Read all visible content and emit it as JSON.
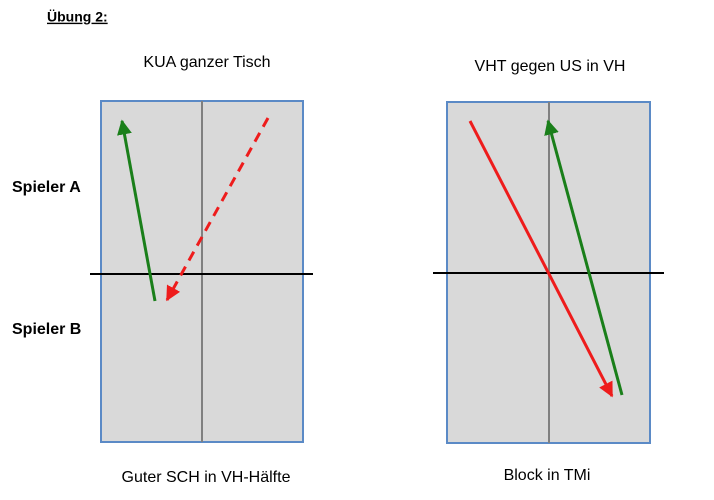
{
  "heading": "Übung 2:",
  "players": [
    "Spieler A",
    "Spieler B"
  ],
  "tables": [
    {
      "title": "KUA ganzer Tisch",
      "caption": "Guter SCH in VH-Hälfte"
    },
    {
      "title": "VHT gegen US in VH",
      "caption": "Block in TMi"
    }
  ]
}
